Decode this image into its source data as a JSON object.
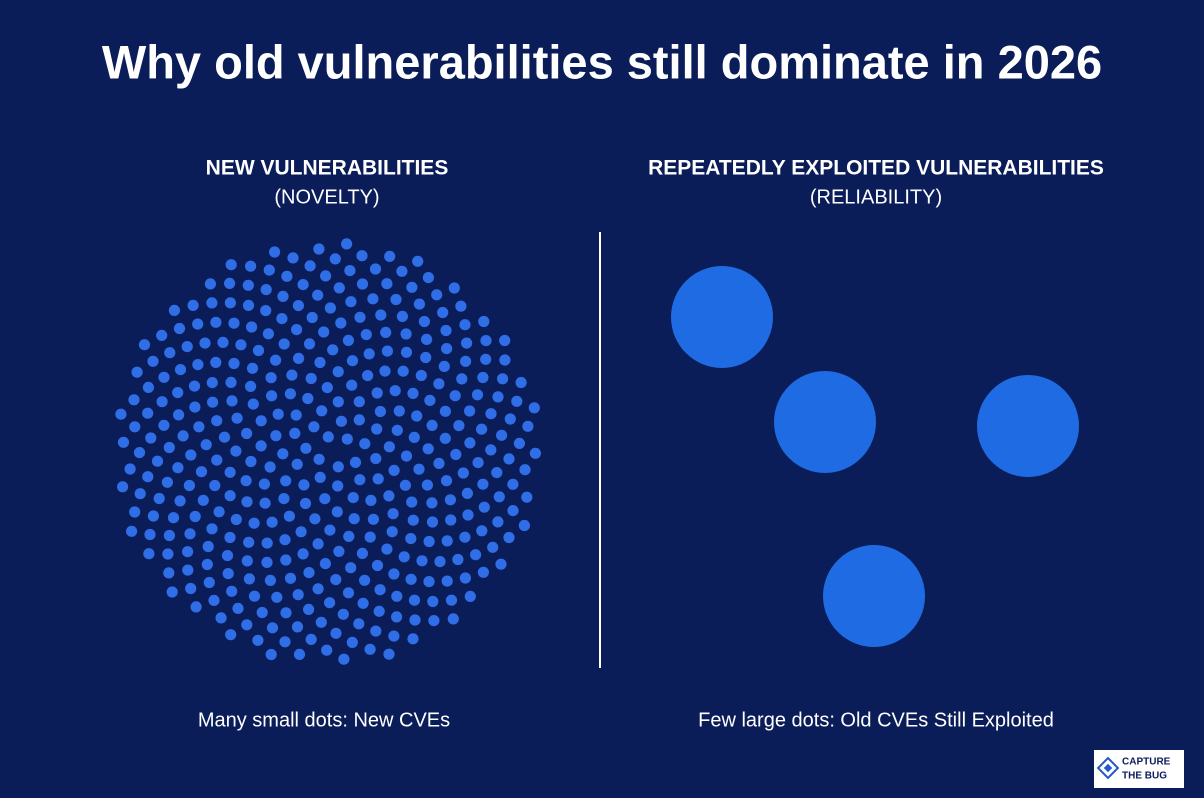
{
  "title": "Why old vulnerabilities still dominate in 2026",
  "left": {
    "heading": "NEW VULNERABILITIES",
    "subheading": "(NOVELTY)",
    "caption": "Many small dots: New CVEs"
  },
  "right": {
    "heading": "REPEATEDLY EXPLOITED VULNERABILITIES",
    "subheading": "(RELIABILITY)",
    "caption": "Few large dots: Old CVEs Still Exploited"
  },
  "logo": {
    "line1": "CAPTURE",
    "line2": "THE BUG"
  }
}
